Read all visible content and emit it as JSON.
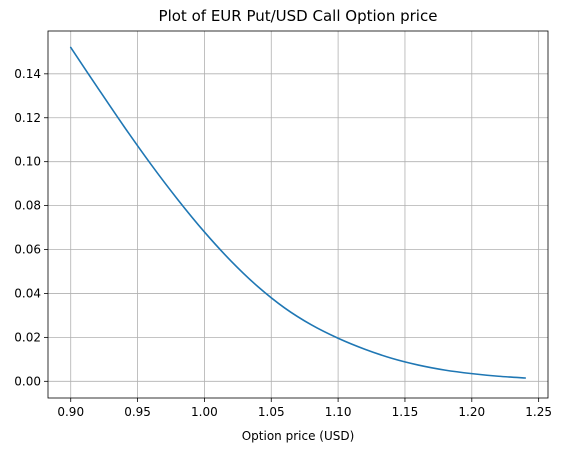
{
  "chart_data": {
    "type": "line",
    "title": "Plot of EUR Put/USD Call Option price",
    "xlabel": "Option price (USD)",
    "ylabel": "",
    "xlim": [
      0.883,
      1.257
    ],
    "ylim": [
      -0.0076,
      0.1595
    ],
    "grid": true,
    "x_ticks": [
      0.9,
      0.95,
      1.0,
      1.05,
      1.1,
      1.15,
      1.2,
      1.25
    ],
    "x_tick_labels": [
      "0.90",
      "0.95",
      "1.00",
      "1.05",
      "1.10",
      "1.15",
      "1.20",
      "1.25"
    ],
    "y_ticks": [
      0.0,
      0.02,
      0.04,
      0.06,
      0.08,
      0.1,
      0.12,
      0.14
    ],
    "y_tick_labels": [
      "0.00",
      "0.02",
      "0.04",
      "0.06",
      "0.08",
      "0.10",
      "0.12",
      "0.14"
    ],
    "series": [
      {
        "color": "#1f77b4",
        "x": [
          0.9,
          0.92,
          0.94,
          0.96,
          0.98,
          1.0,
          1.02,
          1.04,
          1.06,
          1.08,
          1.1,
          1.12,
          1.14,
          1.16,
          1.18,
          1.2,
          1.22,
          1.24
        ],
        "y": [
          0.152,
          0.1338,
          0.1159,
          0.0988,
          0.0828,
          0.068,
          0.0547,
          0.0431,
          0.0334,
          0.0257,
          0.0196,
          0.0146,
          0.0105,
          0.0074,
          0.0051,
          0.0035,
          0.0023,
          0.0015
        ]
      }
    ],
    "colors": {
      "grid": "#b0b0b0",
      "axes": "#000000",
      "line": "#1f77b4"
    }
  }
}
